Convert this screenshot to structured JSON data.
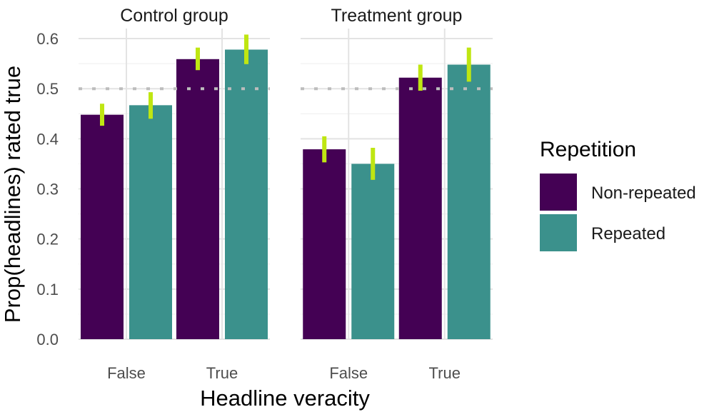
{
  "chart_data": {
    "type": "bar",
    "facets": [
      "Control group",
      "Treatment group"
    ],
    "categories": [
      "False",
      "True"
    ],
    "series": [
      {
        "name": "Non-repeated",
        "color": "#440154",
        "values": {
          "Control group": [
            0.448,
            0.559
          ],
          "Treatment group": [
            0.379,
            0.522
          ]
        },
        "ci": {
          "Control group": [
            [
              0.426,
              0.47
            ],
            [
              0.537,
              0.582
            ]
          ],
          "Treatment group": [
            [
              0.353,
              0.405
            ],
            [
              0.496,
              0.548
            ]
          ]
        }
      },
      {
        "name": "Repeated",
        "color": "#3b918c",
        "values": {
          "Control group": [
            0.467,
            0.578
          ],
          "Treatment group": [
            0.35,
            0.548
          ]
        },
        "ci": {
          "Control group": [
            [
              0.44,
              0.493
            ],
            [
              0.549,
              0.608
            ]
          ],
          "Treatment group": [
            [
              0.318,
              0.382
            ],
            [
              0.514,
              0.582
            ]
          ]
        }
      }
    ],
    "reference_line": 0.5,
    "ylim": [
      0,
      0.62
    ],
    "yticks": [
      "0.0",
      "0.1",
      "0.2",
      "0.3",
      "0.4",
      "0.5",
      "0.6"
    ],
    "xlabel": "Headline veracity",
    "ylabel": "Prop(headlines) rated true",
    "legend": {
      "title": "Repetition",
      "position": "right"
    },
    "grid": true,
    "errorbar_color": "#bfe612"
  }
}
